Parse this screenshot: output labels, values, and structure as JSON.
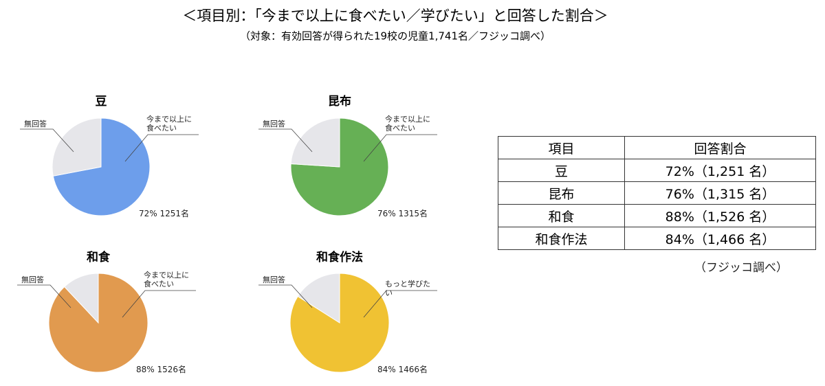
{
  "header": {
    "title": "＜項目別：「今まで以上に食べたい／学びたい」と回答した割合＞",
    "subtitle": "（対象：有効回答が得られた19校の児童1,741名／フジッコ調べ）"
  },
  "chart_data": [
    {
      "type": "pie",
      "title": "豆",
      "categories": [
        "今まで以上に食べたい",
        "無回答"
      ],
      "values": [
        72,
        28
      ],
      "value_labels": [
        "72%  1251名",
        null
      ],
      "colors": [
        "#6d9eeb",
        "#e6e6ea"
      ]
    },
    {
      "type": "pie",
      "title": "昆布",
      "categories": [
        "今まで以上に食べたい",
        "無回答"
      ],
      "values": [
        76,
        24
      ],
      "value_labels": [
        "76%  1315名",
        null
      ],
      "colors": [
        "#66b055",
        "#e6e6ea"
      ]
    },
    {
      "type": "pie",
      "title": "和食",
      "categories": [
        "今まで以上に食べたい",
        "無回答"
      ],
      "values": [
        88,
        12
      ],
      "value_labels": [
        "88%  1526名",
        null
      ],
      "colors": [
        "#e19a4f",
        "#e6e6ea"
      ]
    },
    {
      "type": "pie",
      "title": "和食作法",
      "categories": [
        "もっと学びたい",
        "無回答"
      ],
      "values": [
        84,
        16
      ],
      "value_labels": [
        "84%  1466名",
        null
      ],
      "colors": [
        "#f0c233",
        "#e6e6ea"
      ]
    }
  ],
  "table": {
    "header": [
      "項目",
      "回答割合"
    ],
    "rows": [
      [
        "豆",
        "72%（1,251 名）"
      ],
      [
        "昆布",
        "76%（1,315 名）"
      ],
      [
        "和食",
        "88%（1,526 名）"
      ],
      [
        "和食作法",
        "84%（1,466 名）"
      ]
    ]
  },
  "note": "（フジッコ調べ）"
}
